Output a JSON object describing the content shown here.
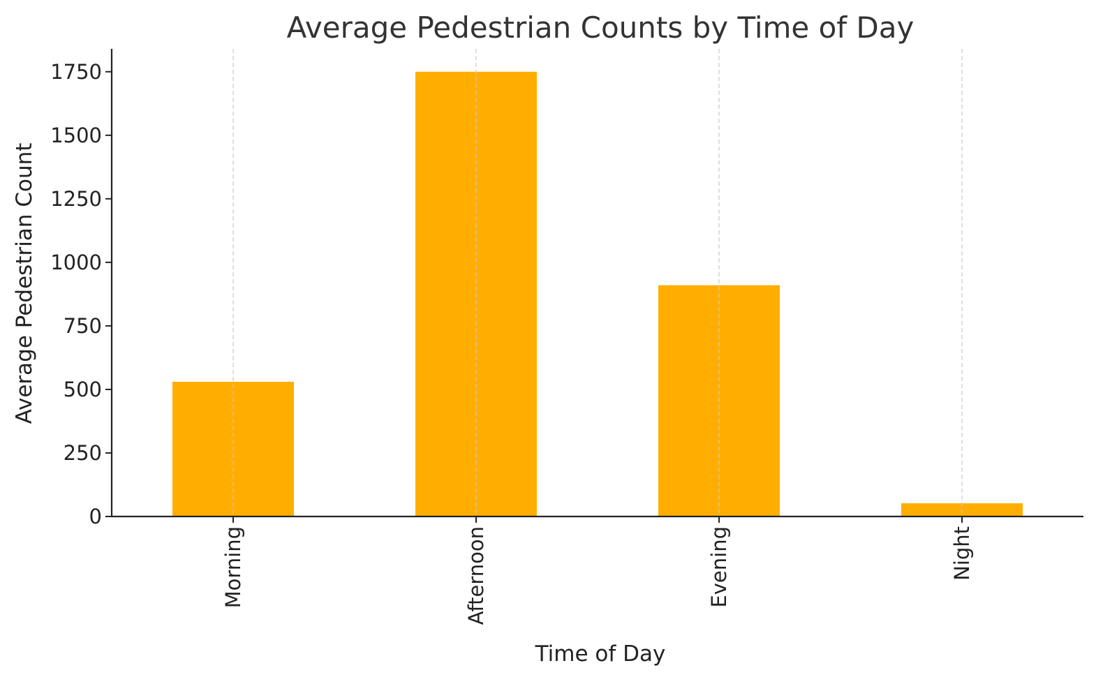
{
  "chart_data": {
    "type": "bar",
    "title": "Average Pedestrian Counts by Time of Day",
    "xlabel": "Time of Day",
    "ylabel": "Average Pedestrian Count",
    "categories": [
      "Morning",
      "Afternoon",
      "Evening",
      "Night"
    ],
    "values": [
      530,
      1750,
      910,
      52
    ],
    "ylim": [
      0,
      1840
    ],
    "yticks": [
      0,
      250,
      500,
      750,
      1000,
      1250,
      1500,
      1750
    ],
    "grid": "vertical dashed",
    "legend": "none",
    "colors": {
      "bar": "#FFAE00",
      "grid": "#c8c8c8",
      "axis": "#222222",
      "title": "#333333"
    }
  }
}
